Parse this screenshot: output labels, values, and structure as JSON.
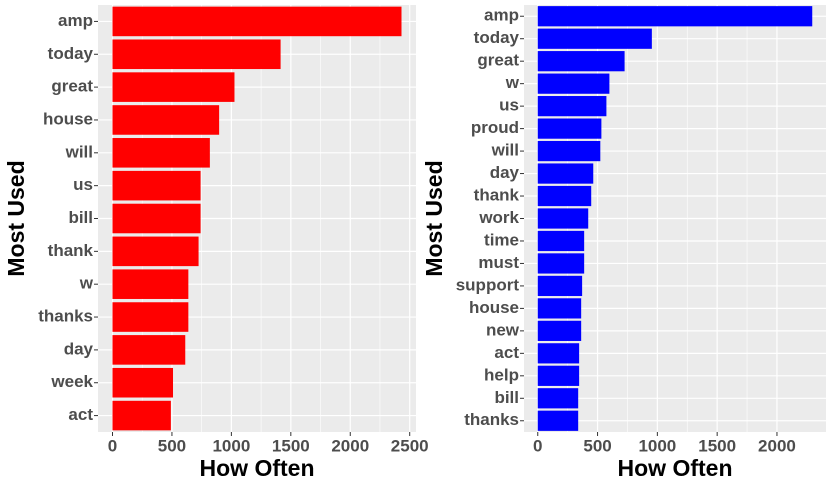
{
  "chart_data": [
    {
      "type": "bar",
      "orientation": "horizontal",
      "x_label": "How Often",
      "y_label": "Most Used",
      "color": "#ff0000",
      "categories": [
        "amp",
        "today",
        "great",
        "house",
        "will",
        "us",
        "bill",
        "thank",
        "w",
        "thanks",
        "day",
        "week",
        "act"
      ],
      "values": [
        2431,
        1414,
        1026,
        897,
        819,
        741,
        741,
        724,
        638,
        638,
        612,
        509,
        491
      ],
      "xlim": [
        -122,
        2553
      ],
      "xticks": [
        0,
        500,
        1000,
        1500,
        2000,
        2500
      ],
      "grid": true
    },
    {
      "type": "bar",
      "orientation": "horizontal",
      "x_label": "How Often",
      "y_label": "Most Used",
      "color": "#0000ff",
      "categories": [
        "amp",
        "today",
        "great",
        "w",
        "us",
        "proud",
        "will",
        "day",
        "thank",
        "work",
        "time",
        "must",
        "support",
        "house",
        "new",
        "act",
        "help",
        "bill",
        "thanks"
      ],
      "values": [
        2295,
        954,
        726,
        599,
        574,
        532,
        523,
        464,
        447,
        422,
        388,
        388,
        371,
        363,
        363,
        346,
        346,
        338,
        338
      ],
      "xlim": [
        -115,
        2410
      ],
      "xticks": [
        0,
        500,
        1000,
        1500,
        2000
      ],
      "grid": true
    }
  ]
}
